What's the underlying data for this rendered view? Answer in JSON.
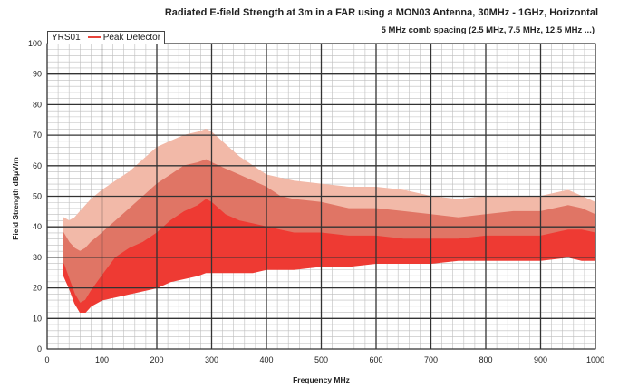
{
  "chart_data": {
    "type": "area",
    "title": "Radiated E-field Strength at 3m in a FAR using a MON03 Antenna, 30MHz - 1GHz, Horizontal",
    "subtitle": "5 MHz comb spacing (2.5 MHz, 7.5 MHz, 12.5 MHz ...)",
    "xlabel": "Frequency MHz",
    "ylabel": "Field Strength dBμV/m",
    "xlim": [
      0,
      1000
    ],
    "ylim": [
      0,
      100
    ],
    "x_ticks": [
      "0",
      "100",
      "200",
      "300",
      "400",
      "500",
      "600",
      "700",
      "800",
      "900",
      "1000"
    ],
    "y_ticks": [
      "0",
      "10",
      "20",
      "30",
      "40",
      "50",
      "60",
      "70",
      "80",
      "90",
      "100"
    ],
    "grid": true,
    "legend_position": "top-left",
    "legend": [
      "YRS01",
      "Peak Detector"
    ],
    "x": [
      30,
      40,
      50,
      60,
      70,
      80,
      100,
      125,
      150,
      175,
      200,
      225,
      250,
      275,
      290,
      300,
      325,
      350,
      375,
      400,
      425,
      450,
      500,
      550,
      600,
      650,
      700,
      750,
      800,
      850,
      900,
      950,
      975,
      1000
    ],
    "series": [
      {
        "name": "Peak Detector",
        "color": "#f2b9a8",
        "upper": [
          43,
          42,
          43,
          45,
          47,
          49,
          52,
          55,
          58,
          62,
          66,
          68,
          70,
          71,
          72,
          71,
          67,
          63,
          60,
          57,
          56,
          55,
          54,
          53,
          53,
          52,
          50,
          49,
          50,
          50,
          50,
          52,
          50,
          48
        ],
        "lower": [
          24,
          20,
          17,
          15,
          15,
          17,
          18,
          19,
          20,
          21,
          23,
          24,
          25,
          26,
          27,
          27,
          27,
          27,
          27,
          28,
          28,
          28,
          28,
          29,
          29,
          30,
          30,
          30,
          31,
          31,
          31,
          31,
          30,
          30
        ]
      },
      {
        "name": "",
        "color": "#e07565",
        "upper": [
          38,
          35,
          33,
          32,
          33,
          35,
          38,
          42,
          46,
          50,
          54,
          57,
          60,
          61,
          62,
          61,
          59,
          57,
          55,
          53,
          50,
          49,
          48,
          46,
          46,
          45,
          44,
          43,
          44,
          45,
          45,
          47,
          46,
          44
        ],
        "lower": [
          24,
          20,
          17,
          15,
          15,
          17,
          18,
          19,
          20,
          21,
          23,
          24,
          25,
          26,
          27,
          27,
          27,
          27,
          27,
          28,
          28,
          28,
          28,
          29,
          29,
          30,
          30,
          30,
          31,
          31,
          31,
          31,
          30,
          30
        ]
      },
      {
        "name": "",
        "color": "#ee3a33",
        "upper": [
          28,
          23,
          18,
          15,
          16,
          19,
          24,
          30,
          33,
          35,
          38,
          42,
          45,
          47,
          49,
          48,
          44,
          42,
          41,
          40,
          39,
          38,
          38,
          37,
          37,
          36,
          36,
          36,
          37,
          37,
          37,
          39,
          39,
          38
        ],
        "lower": [
          24,
          20,
          15,
          12,
          12,
          14,
          16,
          17,
          18,
          19,
          20,
          22,
          23,
          24,
          25,
          25,
          25,
          25,
          25,
          26,
          26,
          26,
          27,
          27,
          28,
          28,
          28,
          29,
          29,
          29,
          29,
          30,
          29,
          29
        ]
      }
    ]
  }
}
